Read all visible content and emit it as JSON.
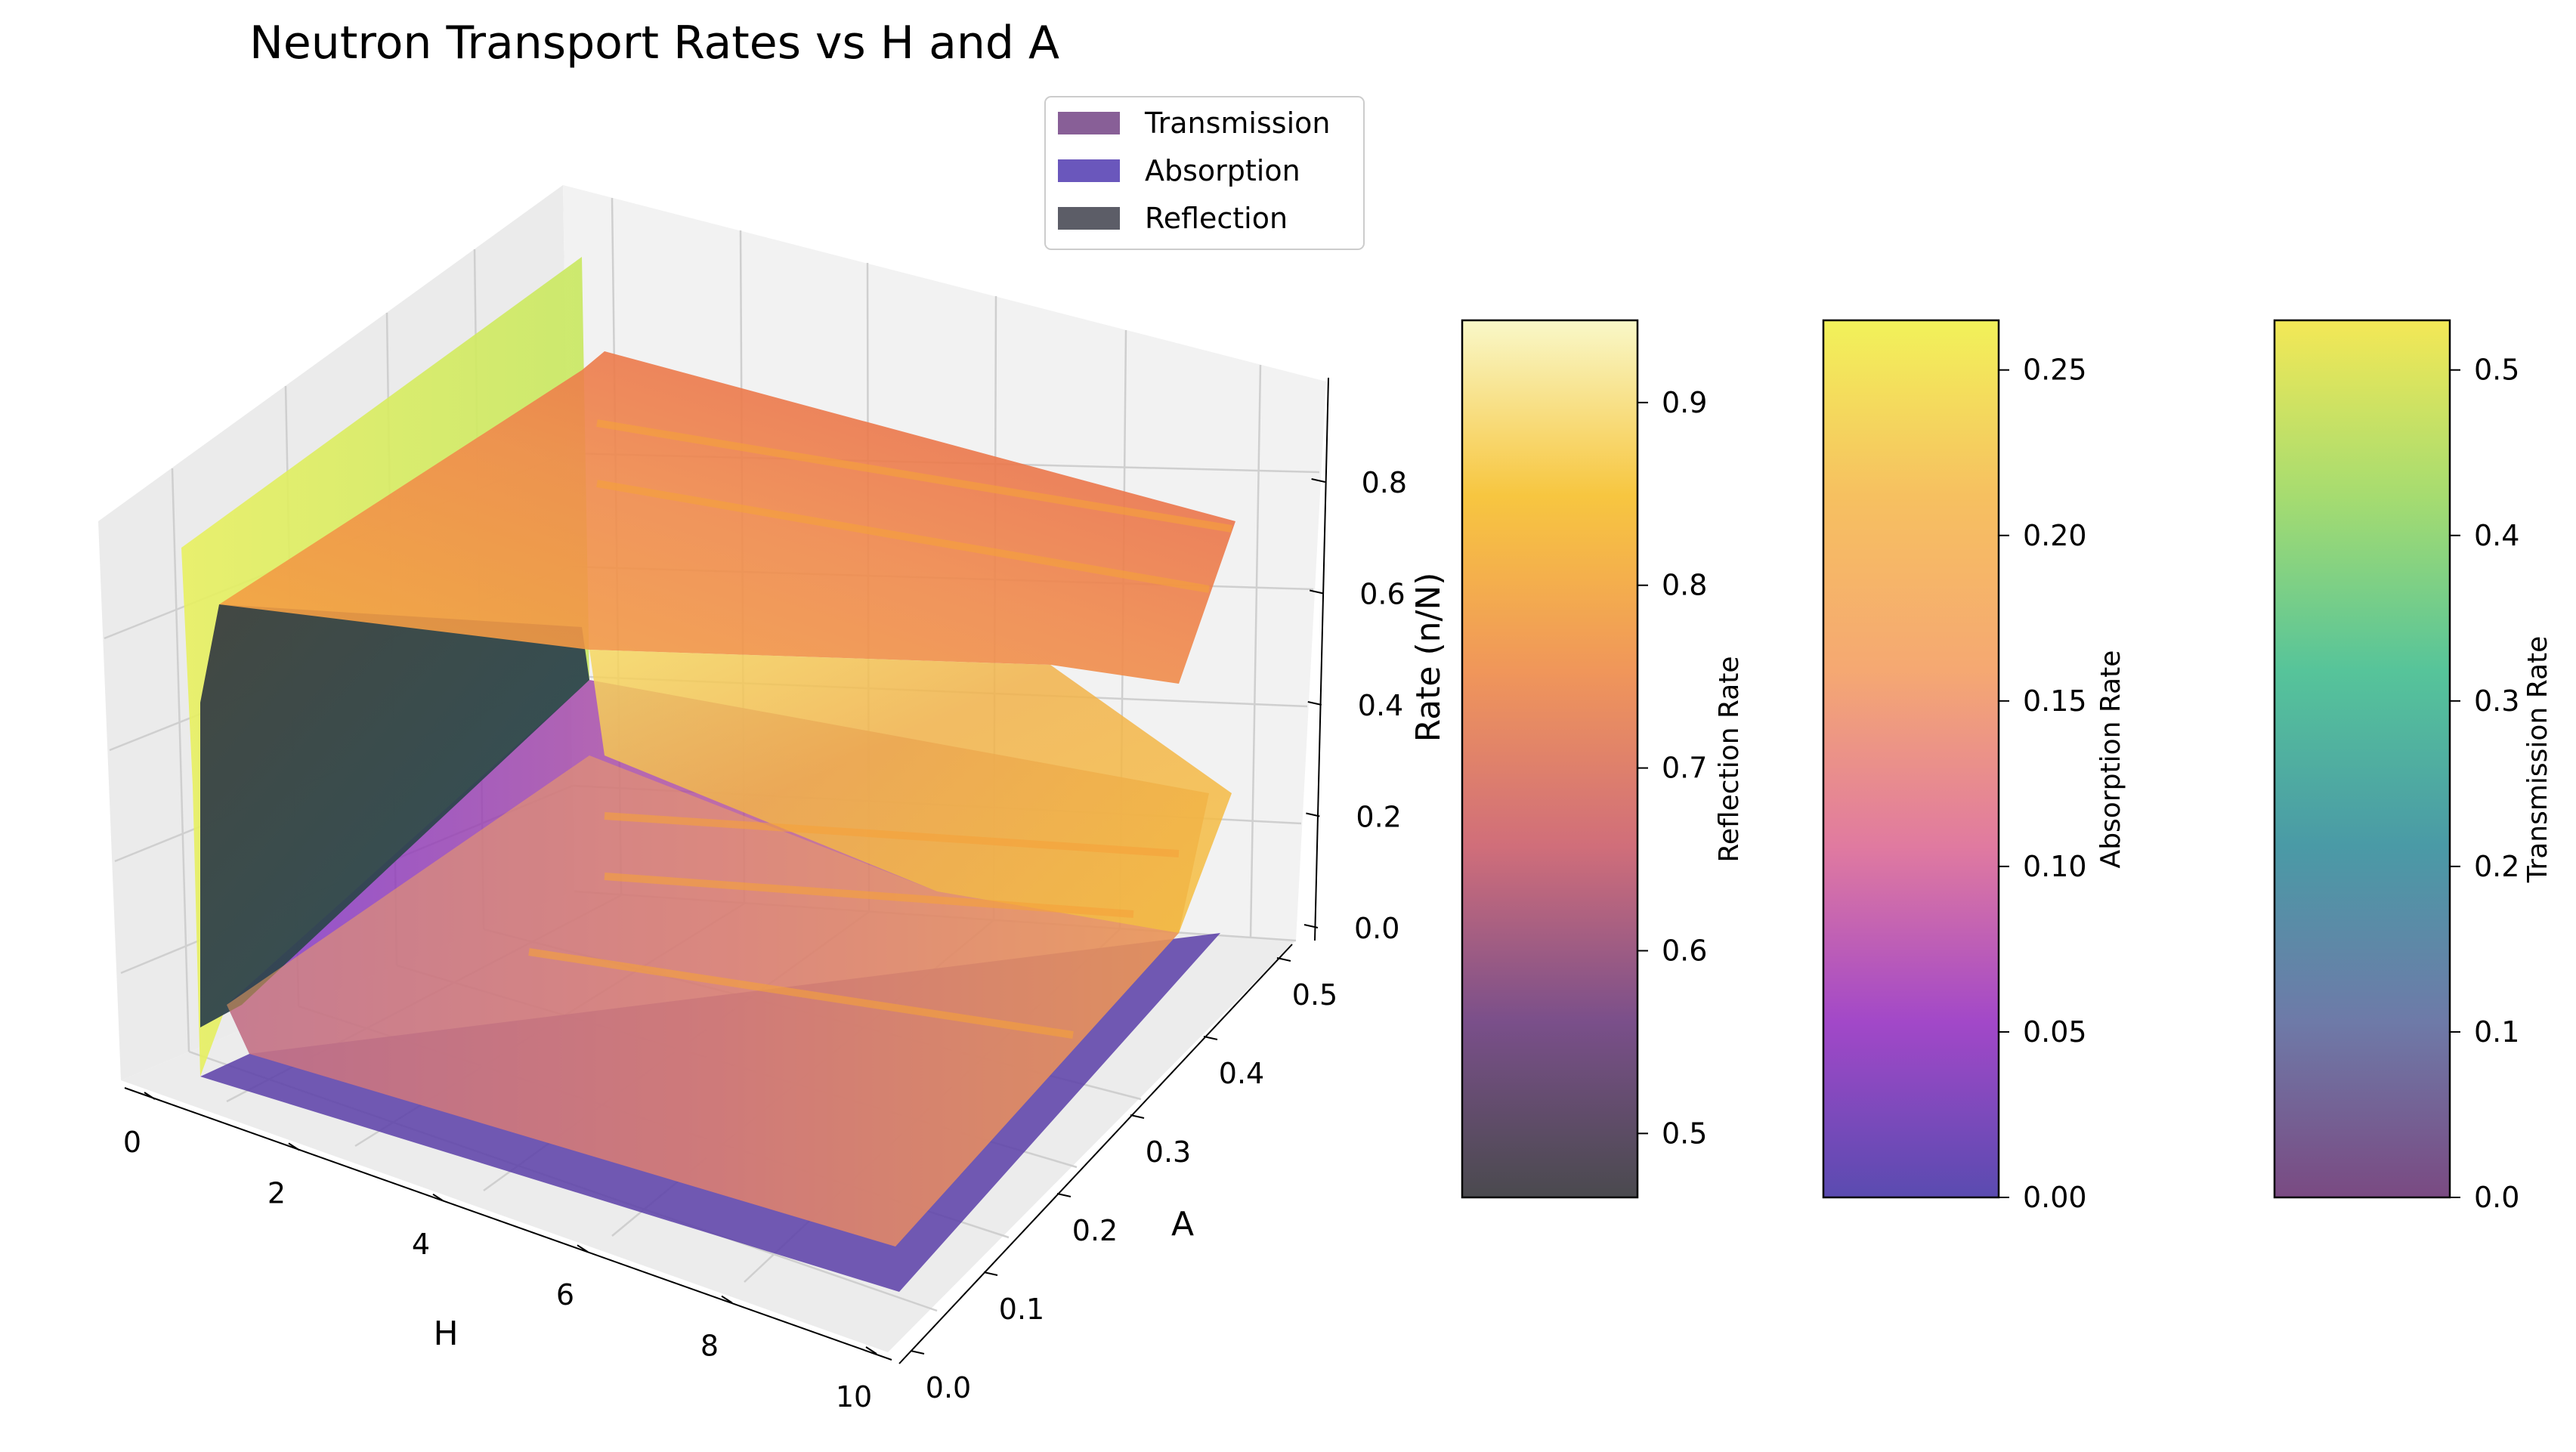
{
  "chart_data": {
    "type": "surface3d",
    "title": "Neutron Transport Rates vs H and A",
    "xlabel": "H",
    "ylabel": "A",
    "zlabel": "Rate (n/N)",
    "xlim": [
      0,
      10
    ],
    "ylim": [
      0,
      0.5
    ],
    "zlim": [
      0,
      0.95
    ],
    "x_ticks": [
      "0",
      "2",
      "4",
      "6",
      "8",
      "10"
    ],
    "y_ticks": [
      "0.0",
      "0.1",
      "0.2",
      "0.3",
      "0.4",
      "0.5"
    ],
    "z_ticks": [
      "0.0",
      "0.2",
      "0.4",
      "0.6",
      "0.8"
    ],
    "legend_position": "top-right of plot",
    "legend": [
      {
        "label": "Transmission",
        "color": "#7b4e8c"
      },
      {
        "label": "Absorption",
        "color": "#5a45b5"
      },
      {
        "label": "Reflection",
        "color": "#4a4b57"
      }
    ],
    "series": [
      {
        "name": "Reflection",
        "colormap": "inferno",
        "H": [
          0,
          0.5,
          1,
          2,
          4,
          6,
          8,
          10
        ],
        "values_at_A_0": [
          0.47,
          0.55,
          0.62,
          0.68,
          0.7,
          0.7,
          0.69,
          0.68
        ],
        "values_at_A_0.5": [
          0.93,
          0.92,
          0.91,
          0.9,
          0.89,
          0.89,
          0.88,
          0.88
        ]
      },
      {
        "name": "Absorption",
        "colormap": "plasma",
        "H": [
          0,
          0.5,
          1,
          2,
          4,
          6,
          8,
          10
        ],
        "values_at_A_0": [
          0.0,
          0.0,
          0.0,
          0.0,
          0.0,
          0.0,
          0.0,
          0.0
        ],
        "values_at_A_0.5": [
          0.0,
          0.03,
          0.05,
          0.06,
          0.07,
          0.07,
          0.07,
          0.07
        ]
      },
      {
        "name": "Transmission",
        "colormap": "viridis",
        "H": [
          0,
          0.5,
          1,
          2,
          4,
          6,
          8,
          10
        ],
        "values_at_A_0": [
          0.53,
          0.4,
          0.3,
          0.22,
          0.18,
          0.16,
          0.15,
          0.14
        ],
        "values_at_A_0.5": [
          0.07,
          0.05,
          0.04,
          0.03,
          0.03,
          0.02,
          0.02,
          0.02
        ]
      }
    ],
    "colorbars": [
      {
        "label": "Reflection Rate",
        "ticks": [
          "0.5",
          "0.6",
          "0.7",
          "0.8",
          "0.9"
        ],
        "range": [
          0.465,
          0.945
        ],
        "stops": [
          "#4a4a4e",
          "#7a4f8a",
          "#d06e7a",
          "#f0965a",
          "#f7c640",
          "#f9f8c8"
        ]
      },
      {
        "label": "Absorption Rate",
        "ticks": [
          "0.00",
          "0.05",
          "0.10",
          "0.15",
          "0.20",
          "0.25"
        ],
        "range": [
          0,
          0.265
        ],
        "stops": [
          "#5a4bb0",
          "#a248c8",
          "#e07aa0",
          "#f5a872",
          "#f6c060",
          "#f2f25a"
        ]
      },
      {
        "label": "Transmission Rate",
        "ticks": [
          "0.0",
          "0.1",
          "0.2",
          "0.3",
          "0.4",
          "0.5"
        ],
        "range": [
          0,
          0.53
        ],
        "stops": [
          "#7a4a82",
          "#6e7aa8",
          "#4a9aa6",
          "#56c49a",
          "#a6dc70",
          "#f4e856"
        ]
      }
    ]
  }
}
